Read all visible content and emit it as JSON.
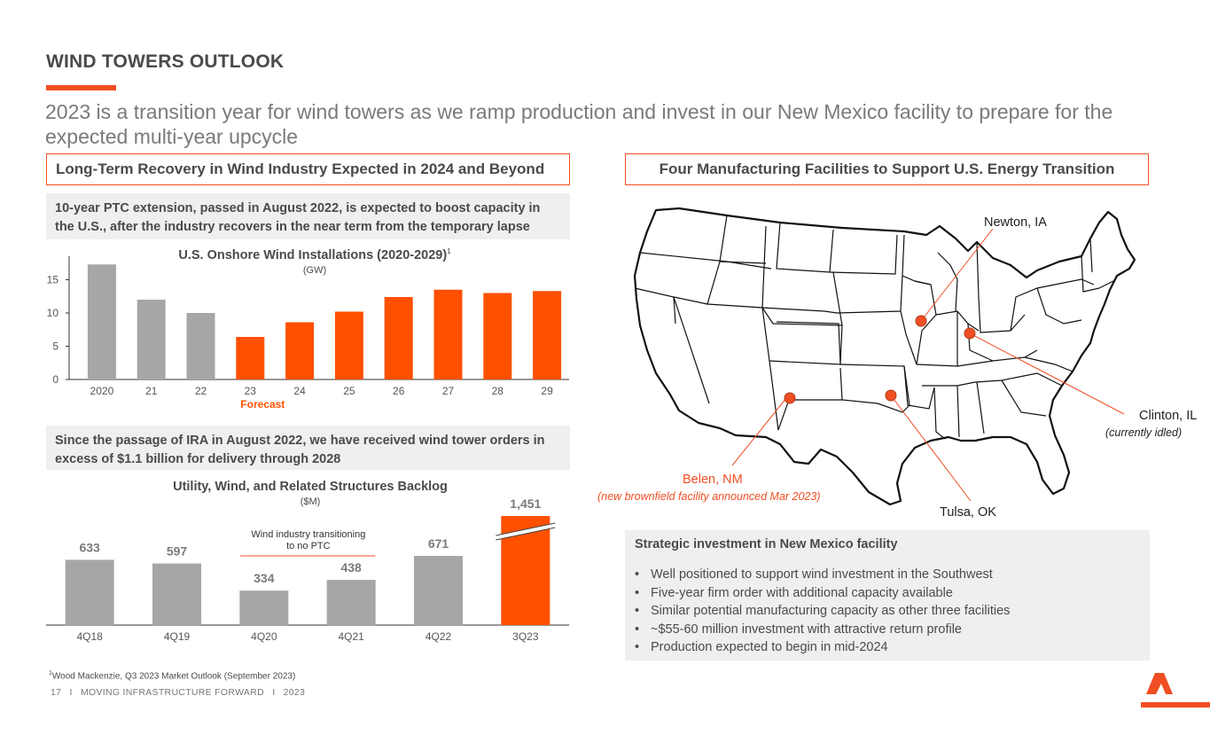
{
  "header": {
    "title": "WIND TOWERS OUTLOOK",
    "subtitle": "2023 is a transition year for wind towers as we ramp production and invest in our New Mexico facility to prepare for the expected multi-year upcycle"
  },
  "left": {
    "section_title": "Long-Term Recovery in Wind Industry Expected in 2024 and Beyond",
    "ptc_note": "10-year PTC extension, passed in August 2022, is expected to boost capacity in the U.S., after the industry recovers in the near term from the temporary lapse",
    "ira_note": "Since the passage of IRA in August 2022, we have received wind tower orders in excess of $1.1 billion for delivery through 2028"
  },
  "right": {
    "section_title": "Four Manufacturing Facilities to Support U.S. Energy Transition",
    "facilities": {
      "newton": "Newton, IA",
      "clinton": "Clinton, IL",
      "clinton_note": "(currently idled)",
      "belen": "Belen, NM",
      "belen_note": "(new brownfield facility announced Mar 2023)",
      "tulsa": "Tulsa, OK"
    },
    "strategic": {
      "title": "Strategic investment in New Mexico facility",
      "bullets": [
        "Well positioned to support wind investment in the Southwest",
        "Five-year firm order with additional capacity available",
        "Similar potential manufacturing capacity as other three facilities",
        "~$55-60 million investment with attractive return profile",
        "Production expected to begin in mid-2024"
      ]
    }
  },
  "chart_data": [
    {
      "type": "bar",
      "title": "U.S. Onshore Wind Installations (2020-2029)",
      "title_sup": "1",
      "unit": "(GW)",
      "categories": [
        "2020",
        "21",
        "22",
        "23",
        "24",
        "25",
        "26",
        "27",
        "28",
        "29"
      ],
      "values": [
        17.3,
        12.0,
        10.0,
        6.4,
        8.6,
        10.2,
        12.4,
        13.5,
        13.0,
        13.3
      ],
      "forecast_from_index": 3,
      "forecast_label": "Forecast",
      "yticks": [
        0,
        5,
        10,
        15
      ],
      "ylim": [
        0,
        18
      ],
      "colors": {
        "actual": "#a6a6a6",
        "forecast": "#ff5000"
      }
    },
    {
      "type": "bar",
      "title": "Utility, Wind, and Related Structures Backlog",
      "unit": "($M)",
      "categories": [
        "4Q18",
        "4Q19",
        "4Q20",
        "4Q21",
        "4Q22",
        "3Q23"
      ],
      "values": [
        633,
        597,
        334,
        438,
        671,
        1451
      ],
      "labels": [
        "633",
        "597",
        "334",
        "438",
        "671",
        "1,451"
      ],
      "annotation": "Wind industry transitioning to no PTC",
      "colors": {
        "default": "#a6a6a6",
        "highlight": "#ff5000"
      }
    }
  ],
  "footer": {
    "footnote_sup": "1",
    "footnote": "Wood Mackenzie, Q3 2023 Market Outlook (September 2023)",
    "page": "17",
    "sep": "I",
    "tagline": "MOVING INFRASTRUCTURE FORWARD",
    "year": "2023"
  },
  "colors": {
    "accent": "#f04e23",
    "bar_orange": "#ff5000",
    "bar_grey": "#a6a6a6"
  }
}
